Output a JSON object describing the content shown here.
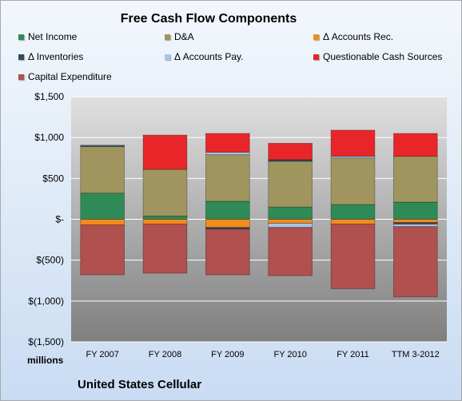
{
  "chart_data": {
    "type": "bar",
    "stacked": true,
    "title": "Free Cash Flow Components",
    "ylabel": "millions",
    "ylim": [
      -1500,
      1500
    ],
    "yticks": [
      1500,
      1000,
      500,
      0,
      -500,
      -1000,
      -1500
    ],
    "ytick_labels": [
      "$1,500",
      "$1,000",
      "$500",
      "$-",
      "$(500)",
      "$(1,000)",
      "$(1,500)"
    ],
    "categories": [
      "FY 2007",
      "FY 2008",
      "FY 2009",
      "FY 2010",
      "FY 2011",
      "TTM 3-2012"
    ],
    "legend_position": "top",
    "series": [
      {
        "name": "Net Income",
        "color": "#2e8b57",
        "values": [
          320,
          40,
          220,
          150,
          180,
          210
        ]
      },
      {
        "name": "D&A",
        "color": "#a0955f",
        "values": [
          570,
          570,
          570,
          560,
          570,
          560
        ]
      },
      {
        "name": "Δ Accounts Rec.",
        "color": "#f28c1e",
        "values": [
          -70,
          -60,
          -100,
          -50,
          -60,
          -40
        ]
      },
      {
        "name": "Δ Inventories",
        "color": "#34495e",
        "values": [
          10,
          0,
          -20,
          20,
          0,
          -20
        ]
      },
      {
        "name": "Δ Accounts Pay.",
        "color": "#a8c4e8",
        "values": [
          10,
          0,
          30,
          -50,
          20,
          -30
        ]
      },
      {
        "name": "Questionable Cash Sources",
        "color": "#e8262a",
        "values": [
          0,
          420,
          230,
          200,
          320,
          280
        ]
      },
      {
        "name": "Capital Expenditure",
        "color": "#b0504f",
        "values": [
          -610,
          -600,
          -560,
          -590,
          -790,
          -860
        ]
      }
    ]
  },
  "footer": {
    "company": "United States Cellular"
  }
}
